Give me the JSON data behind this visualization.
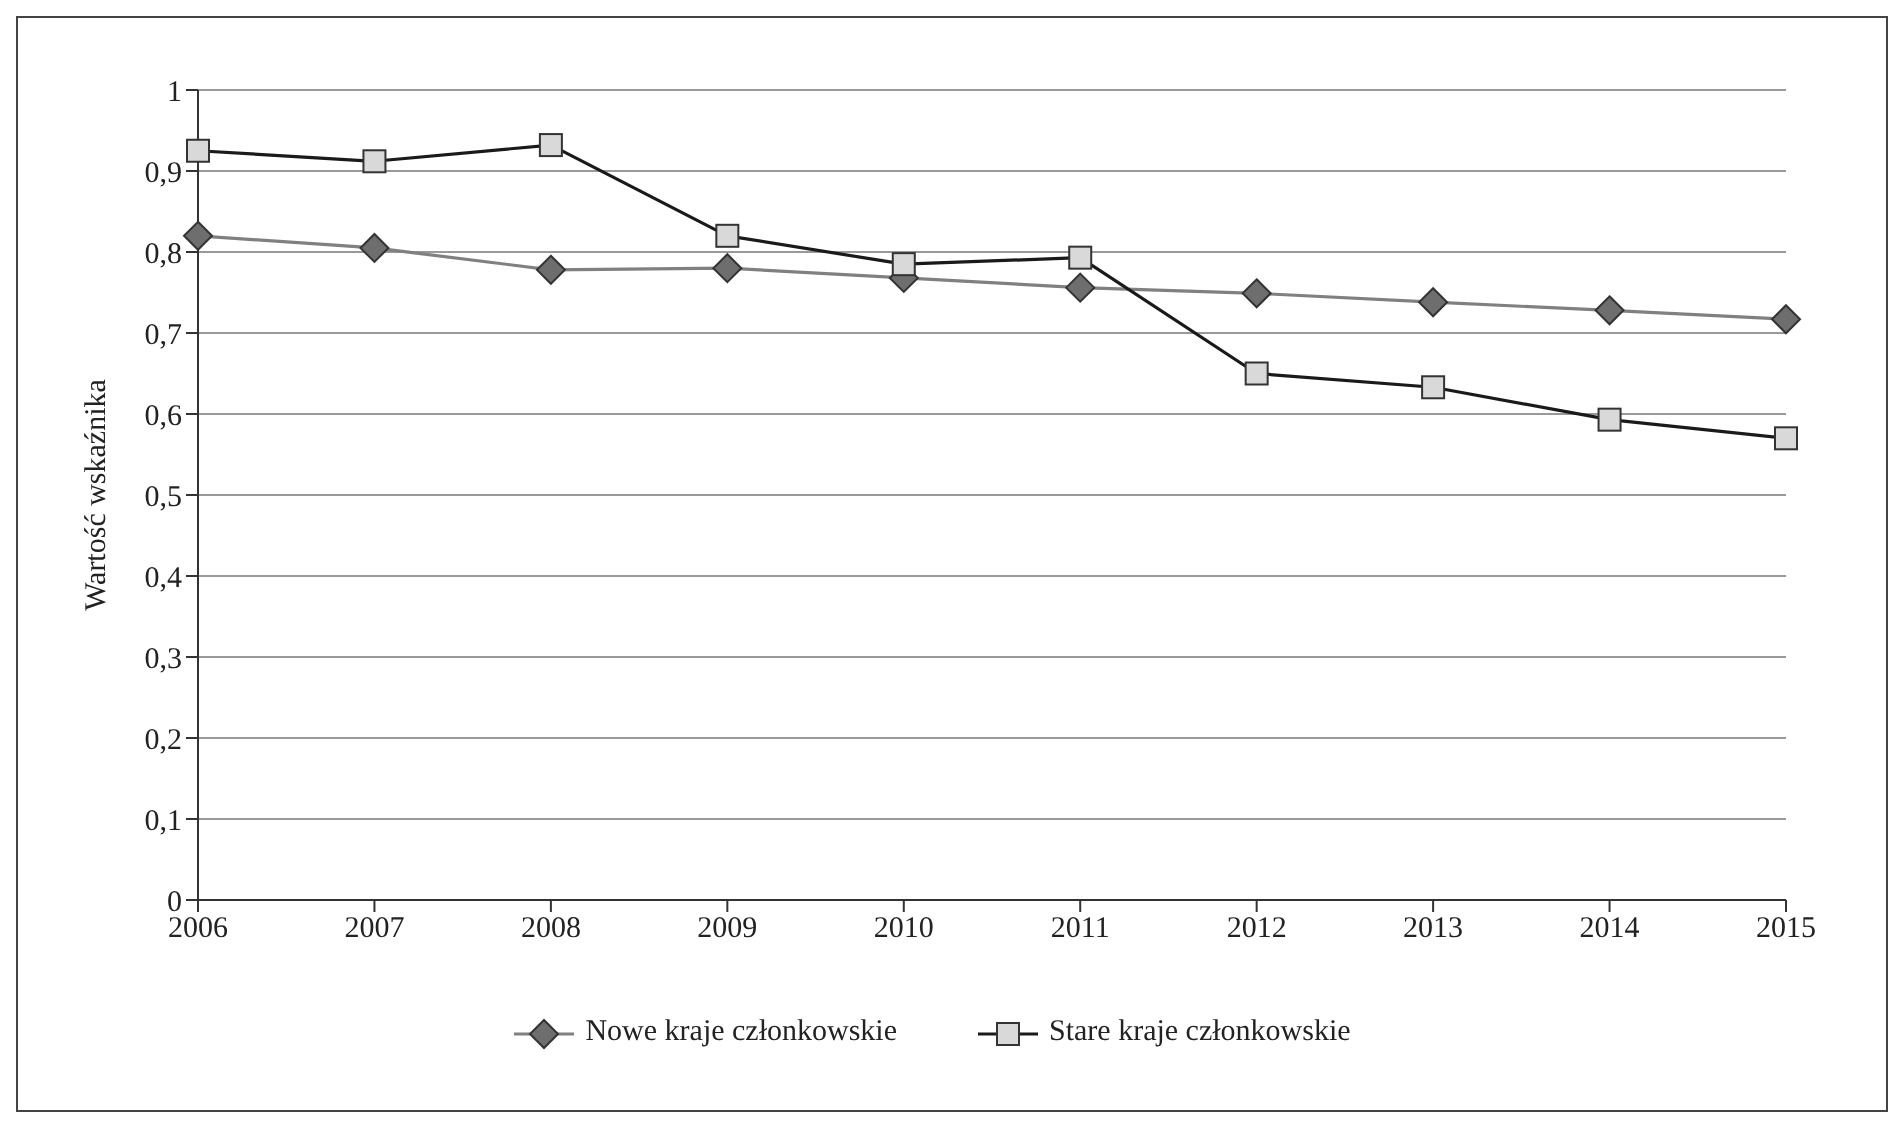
{
  "chart_data": {
    "type": "line",
    "ylabel": "Wartość wskaźnika",
    "categories": [
      "2006",
      "2007",
      "2008",
      "2009",
      "2010",
      "2011",
      "2012",
      "2013",
      "2014",
      "2015"
    ],
    "series": [
      {
        "name": "Nowe kraje członkowskie",
        "color": "#808080",
        "marker": "diamond",
        "colors": [
          "#6e6e6e",
          "#6e6e6e",
          "#6e6e6e",
          "#6e6e6e",
          "#6e6e6e",
          "#6e6e6e",
          "#6e6e6e",
          "#6e6e6e",
          "#6e6e6e",
          "#6e6e6e"
        ],
        "values": [
          0.82,
          0.805,
          0.778,
          0.78,
          0.768,
          0.756,
          0.749,
          0.738,
          0.728,
          0.717
        ]
      },
      {
        "name": "Stare kraje członkowskie",
        "color": "#1a1a1a",
        "marker": "square",
        "colors": [
          "#d9d9d9",
          "#d9d9d9",
          "#d9d9d9",
          "#d9d9d9",
          "#d9d9d9",
          "#d9d9d9",
          "#d9d9d9",
          "#d9d9d9",
          "#d9d9d9",
          "#d9d9d9"
        ],
        "values": [
          0.925,
          0.912,
          0.932,
          0.82,
          0.785,
          0.793,
          0.65,
          0.633,
          0.593,
          0.57
        ]
      }
    ],
    "ylim": [
      0,
      1
    ],
    "yticks": [
      0,
      {
        "value": 0.1,
        "label": "0,1"
      },
      {
        "value": 0.2,
        "label": "0,2"
      },
      {
        "value": 0.3,
        "label": "0,3"
      },
      {
        "value": 0.4,
        "label": "0,4"
      },
      {
        "value": 0.5,
        "label": "0,5"
      },
      {
        "value": 0.6,
        "label": "0,6"
      },
      {
        "value": 0.7,
        "label": "0,7"
      },
      {
        "value": 0.8,
        "label": "0,8"
      },
      {
        "value": 0.9,
        "label": "0,9"
      },
      1
    ],
    "grid": "y",
    "legend": "bottom",
    "line_style": "solid"
  }
}
